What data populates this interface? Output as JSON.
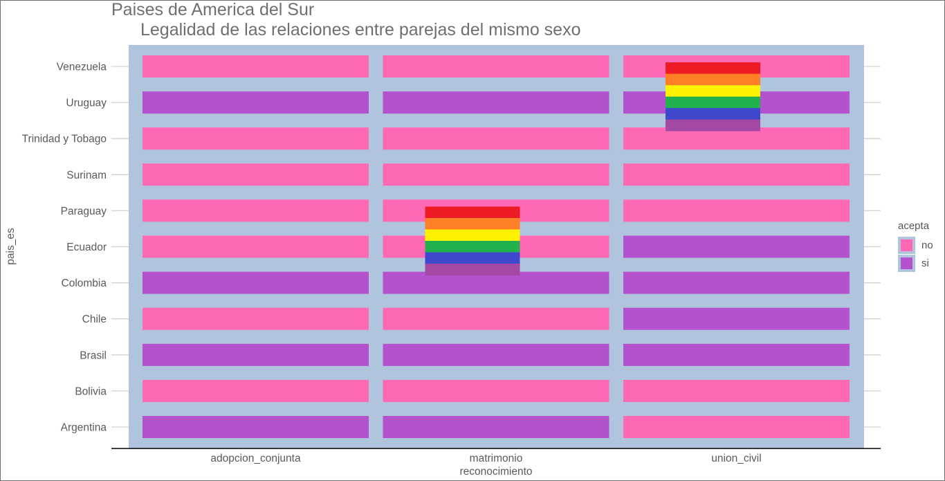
{
  "header": {
    "title": "Paises de America del Sur",
    "subtitle": "Legalidad de las relaciones entre parejas del mismo sexo"
  },
  "colors": {
    "panel_background": "#b0c4de",
    "no": "#ff69b4",
    "si": "#b452cd",
    "axis_text": "#595959",
    "grid": "#d0d0d0",
    "rainbow": [
      "#ed1c24",
      "#ff7f27",
      "#fff200",
      "#22b14c",
      "#3f48cc",
      "#a349a4"
    ]
  },
  "legend": {
    "title": "acepta",
    "items": [
      {
        "label": "no",
        "color": "#ff69b4"
      },
      {
        "label": "si",
        "color": "#b452cd"
      }
    ]
  },
  "icons": [
    "rainbow-flag-icon"
  ],
  "chart_data": {
    "type": "heatmap",
    "xlabel": "reconocimiento",
    "ylabel": "pais_es",
    "x_categories": [
      "adopcion_conjunta",
      "matrimonio",
      "union_civil"
    ],
    "y_categories": [
      "Argentina",
      "Bolivia",
      "Brasil",
      "Chile",
      "Colombia",
      "Ecuador",
      "Paraguay",
      "Surinam",
      "Trinidad y Tobago",
      "Uruguay",
      "Venezuela"
    ],
    "values": {
      "Argentina": [
        "si",
        "si",
        "no"
      ],
      "Bolivia": [
        "no",
        "no",
        "no"
      ],
      "Brasil": [
        "si",
        "si",
        "si"
      ],
      "Chile": [
        "no",
        "no",
        "si"
      ],
      "Colombia": [
        "si",
        "si",
        "si"
      ],
      "Ecuador": [
        "no",
        "no",
        "si"
      ],
      "Paraguay": [
        "no",
        "no",
        "no"
      ],
      "Surinam": [
        "no",
        "no",
        "no"
      ],
      "Trinidad y Tobago": [
        "no",
        "no",
        "no"
      ],
      "Uruguay": [
        "si",
        "si",
        "si"
      ],
      "Venezuela": [
        "no",
        "no",
        "no"
      ]
    },
    "legend_position": "right",
    "grid": true,
    "annotations": [
      {
        "type": "rainbow-flag-icon",
        "x": "matrimonio",
        "y": "Ecuador"
      },
      {
        "type": "rainbow-flag-icon",
        "x": "union_civil",
        "y": "Uruguay"
      }
    ]
  }
}
